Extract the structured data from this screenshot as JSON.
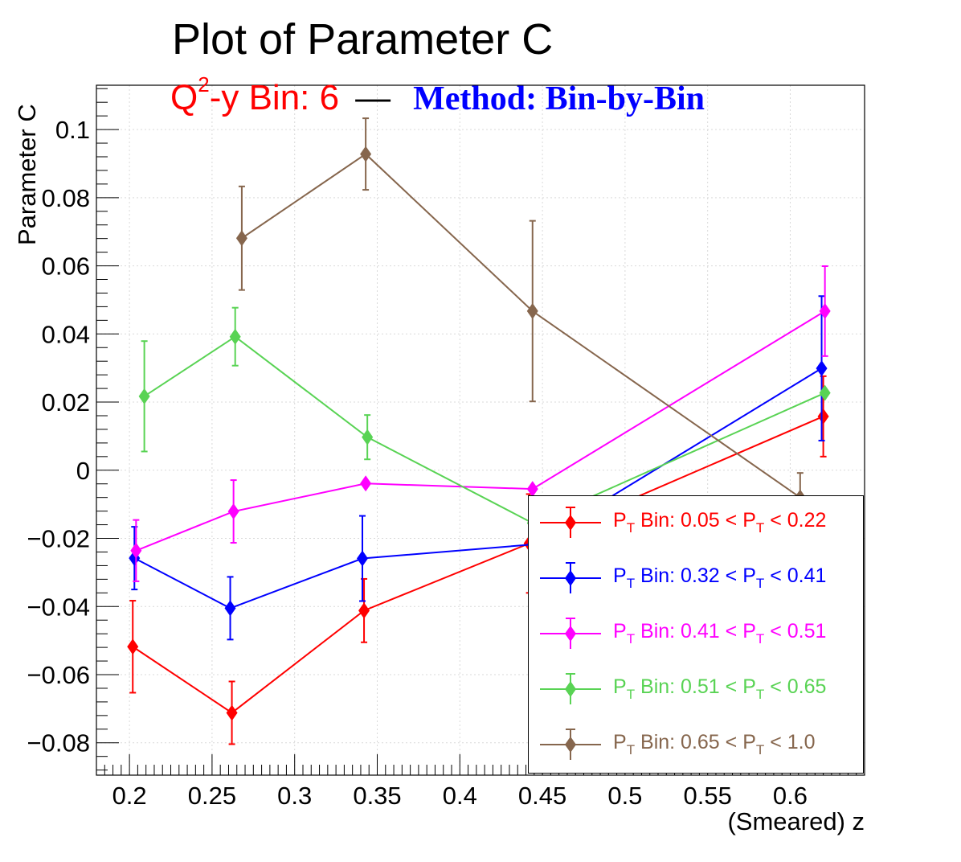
{
  "title": "Plot of Parameter C",
  "subtitle": {
    "bin_prefix": "Q",
    "bin_sup": "2",
    "bin_rest": "-y Bin: 6",
    "dash": "—",
    "method": "Method: Bin-by-Bin"
  },
  "chart_data": {
    "type": "line",
    "title": "Plot of Parameter C",
    "xlabel": "(Smeared) z",
    "ylabel": "Parameter C",
    "xlim": [
      0.18,
      0.645
    ],
    "ylim": [
      -0.0895,
      0.113
    ],
    "x_ticks": [
      0.2,
      0.25,
      0.3,
      0.35,
      0.4,
      0.45,
      0.5,
      0.55,
      0.6
    ],
    "x_tick_labels": [
      "0.2",
      "0.25",
      "0.3",
      "0.35",
      "0.4",
      "0.45",
      "0.5",
      "0.55",
      "0.6"
    ],
    "y_ticks": [
      -0.08,
      -0.06,
      -0.04,
      -0.02,
      0,
      0.02,
      0.04,
      0.06,
      0.08,
      0.1
    ],
    "y_tick_labels": [
      "−0.08",
      "−0.06",
      "−0.04",
      "−0.02",
      "0",
      "0.02",
      "0.04",
      "0.06",
      "0.08",
      "0.1"
    ],
    "grid": true,
    "legend_position": "bottom-right",
    "series": [
      {
        "name": "P_T Bin: 0.05 < P_T < 0.22",
        "label_parts": [
          "P",
          "T",
          " Bin: 0.05 < P",
          "T",
          " < 0.22"
        ],
        "color": "#ff0000",
        "x": [
          0.202,
          0.262,
          0.342,
          0.442,
          0.62
        ],
        "y": [
          -0.0518,
          -0.0712,
          -0.0412,
          -0.0215,
          0.0158
        ],
        "yerr": [
          0.0135,
          0.0092,
          0.0093,
          0.0145,
          0.0118
        ]
      },
      {
        "name": "P_T Bin: 0.32 < P_T < 0.41",
        "label_parts": [
          "P",
          "T",
          " Bin: 0.32 < P",
          "T",
          " < 0.41"
        ],
        "color": "#0000ff",
        "x": [
          0.203,
          0.261,
          0.341,
          0.444,
          0.619
        ],
        "y": [
          -0.0258,
          -0.0405,
          -0.0259,
          -0.0218,
          0.0299
        ],
        "yerr": [
          0.0092,
          0.0092,
          0.0125,
          0.0118,
          0.0212
        ]
      },
      {
        "name": "P_T Bin: 0.41 < P_T < 0.51",
        "label_parts": [
          "P",
          "T",
          " Bin: 0.41 < P",
          "T",
          " < 0.51"
        ],
        "color": "#ff00ff",
        "x": [
          0.204,
          0.263,
          0.343,
          0.444,
          0.621
        ],
        "y": [
          -0.0236,
          -0.0121,
          -0.0039,
          -0.0055,
          0.0467
        ],
        "yerr": [
          0.009,
          0.0092,
          0.0,
          0.0,
          0.0132
        ]
      },
      {
        "name": "P_T Bin: 0.51 < P_T < 0.65",
        "label_parts": [
          "P",
          "T",
          " Bin: 0.51 < P",
          "T",
          " < 0.65"
        ],
        "color": "#59d354",
        "x": [
          0.209,
          0.264,
          0.344,
          0.444,
          0.621
        ],
        "y": [
          0.0217,
          0.0392,
          0.0097,
          -0.0155,
          0.0227
        ],
        "yerr": [
          0.0162,
          0.0085,
          0.0065,
          0.0,
          0.0
        ]
      },
      {
        "name": "P_T Bin: 0.65 < P_T < 1.0",
        "label_parts": [
          "P",
          "T",
          " Bin: 0.65 < P",
          "T",
          " < 1.0"
        ],
        "color": "#86664d",
        "x": [
          0.268,
          0.343,
          0.444,
          0.606
        ],
        "y": [
          0.0681,
          0.0928,
          0.0467,
          -0.008
        ],
        "yerr": [
          0.0152,
          0.0105,
          0.0265,
          0.0072
        ]
      }
    ]
  }
}
